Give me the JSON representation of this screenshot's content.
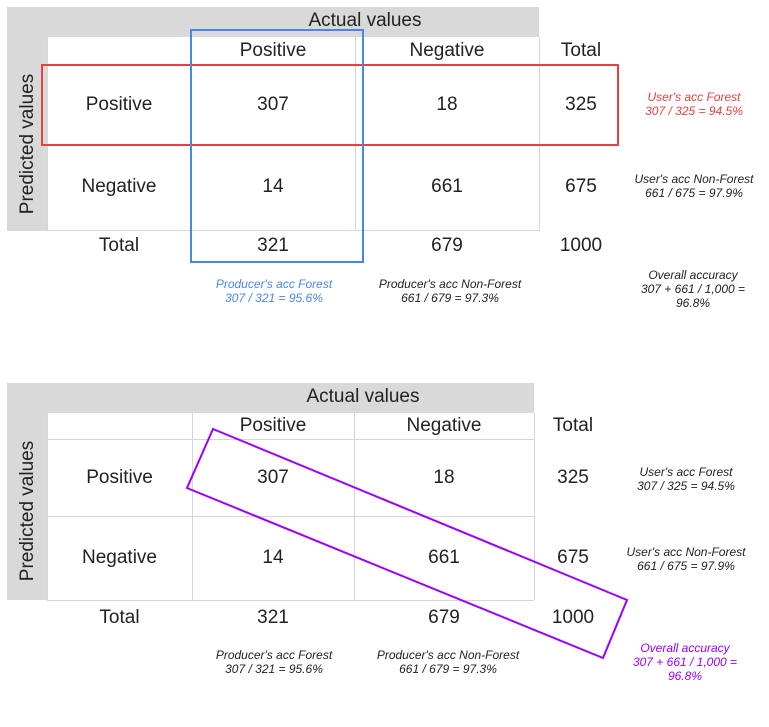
{
  "top": {
    "actual_values": "Actual values",
    "predicted_values": "Predicted values",
    "col_positive": "Positive",
    "col_negative": "Negative",
    "col_total": "Total",
    "row_positive": "Positive",
    "row_negative": "Negative",
    "row_total": "Total",
    "cells": {
      "pp": "307",
      "pn": "18",
      "pt": "325",
      "np": "14",
      "nn": "661",
      "nt": "675",
      "tp": "321",
      "tn": "679",
      "tt": "1000"
    },
    "notes": {
      "users_forest": "User's acc Forest\n307 / 325 = 94.5%",
      "users_nonforest": "User's acc Non-Forest\n661 / 675 = 97.9%",
      "producers_forest": "Producer's acc Forest\n307 / 321 = 95.6%",
      "producers_nonforest": "Producer's acc Non-Forest\n661 / 679 = 97.3%",
      "overall": "Overall accuracy\n307 + 661 / 1,000 =\n96.8%"
    }
  },
  "bottom": {
    "actual_values": "Actual values",
    "predicted_values": "Predicted values",
    "col_positive": "Positive",
    "col_negative": "Negative",
    "col_total": "Total",
    "row_positive": "Positive",
    "row_negative": "Negative",
    "row_total": "Total",
    "cells": {
      "pp": "307",
      "pn": "18",
      "pt": "325",
      "np": "14",
      "nn": "661",
      "nt": "675",
      "tp": "321",
      "tn": "679",
      "tt": "1000"
    },
    "notes": {
      "users_forest": "User's acc Forest\n307 / 325 = 94.5%",
      "users_nonforest": "User's acc Non-Forest\n661 / 675 = 97.9%",
      "producers_forest": "Producer's acc Forest\n307 / 321 = 95.6%",
      "producers_nonforest": "Producer's acc Non-Forest\n661 / 679 = 97.3%",
      "overall": "Overall accuracy\n307 + 661 / 1,000 =\n96.8%"
    }
  },
  "colors": {
    "user_forest_top": "#e8413b",
    "producer_forest_top": "#4a86e8",
    "overall_bottom": "#9900ff",
    "grid_gray": "#d9d9d9"
  }
}
